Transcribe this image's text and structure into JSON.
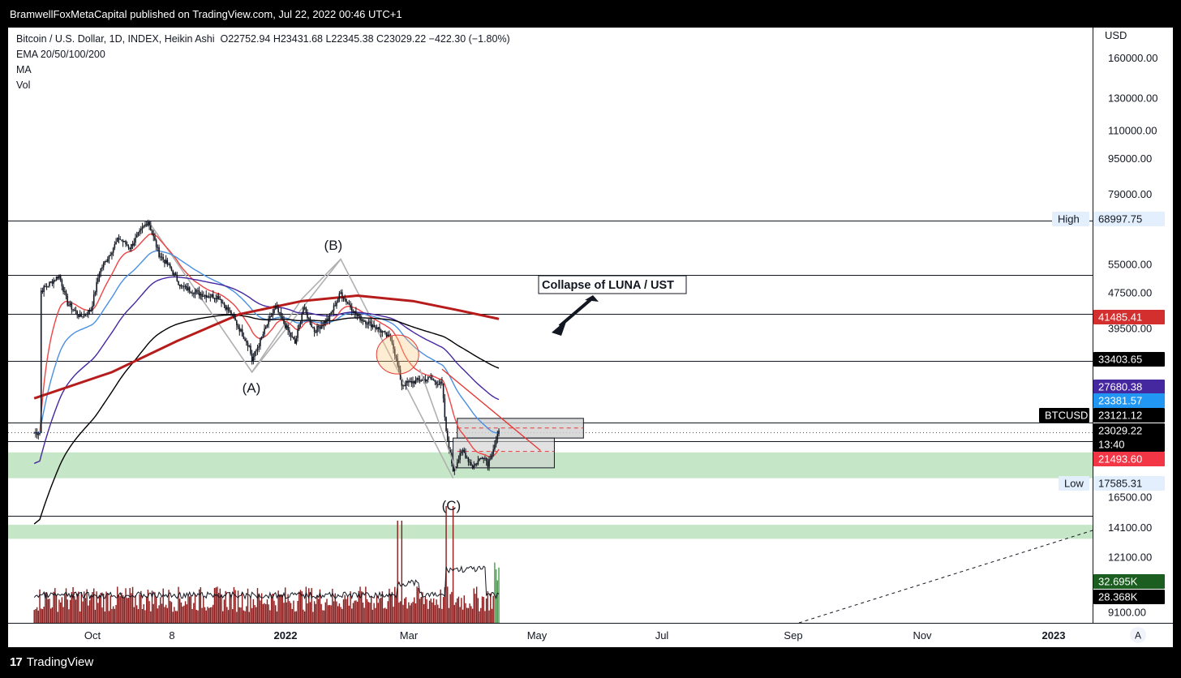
{
  "header": {
    "publisher": "BramwellFoxMetaCapital published on TradingView.com, Jul 22, 2022 00:46 UTC+1"
  },
  "footer": {
    "brand": "TradingView",
    "brand_mark": "17"
  },
  "legend": {
    "symbol": "Bitcoin / U.S. Dollar, 1D, INDEX, Heikin Ashi",
    "ohlc": "O22752.94  H23431.68  L22345.38  C23029.22  −422.30 (−1.80%)",
    "ema": "EMA 20/50/100/200",
    "ma": "MA",
    "vol": "Vol"
  },
  "currency": "USD",
  "auto_button": "A",
  "colors": {
    "ema20": "#ef4444",
    "ema50": "#4a90e2",
    "ema100": "#4527a0",
    "ema200": "#000000",
    "ma": "#b71c1c",
    "zone": "#81c784",
    "volume": "#8b1a1a"
  },
  "chart_data": {
    "type": "candlestick",
    "scale": "log",
    "x_ticks": [
      "Oct",
      "8",
      "2022",
      "Mar",
      "May",
      "Jul",
      "Sep",
      "Nov",
      "2023"
    ],
    "y_ticks": [
      160000,
      130000,
      110000,
      95000,
      79000,
      55000,
      47500,
      39500,
      16500,
      14100,
      12100,
      9100
    ],
    "y_tick_labels": [
      "160000.00",
      "130000.00",
      "110000.00",
      "95000.00",
      "79000.00",
      "55000.00",
      "47500.00",
      "39500.00",
      "16500.00",
      "14100.00",
      "12100.00",
      "9100.00"
    ],
    "price_labels": [
      {
        "label": "High",
        "value": "68997.75",
        "style": "plain"
      },
      {
        "label": "",
        "value": "41485.41",
        "style": "ma"
      },
      {
        "label": "",
        "value": "33403.65",
        "style": "black"
      },
      {
        "label": "",
        "value": "27680.38",
        "style": "ema100"
      },
      {
        "label": "",
        "value": "23381.57",
        "style": "ema50"
      },
      {
        "label": "BTCUSD",
        "value": "23121.12",
        "style": "black"
      },
      {
        "label": "",
        "value": "23029.22",
        "style": "black"
      },
      {
        "label": "",
        "value": "13:40",
        "style": "black"
      },
      {
        "label": "",
        "value": "21493.60",
        "style": "ema20"
      },
      {
        "label": "Low",
        "value": "17585.31",
        "style": "plain"
      },
      {
        "label": "",
        "value": "32.695K",
        "style": "volgreen"
      },
      {
        "label": "",
        "value": "28.368K",
        "style": "black"
      }
    ],
    "annotations": [
      "(A)",
      "(B)",
      "(C)",
      "Collapse of LUNA / UST"
    ],
    "horizontal_levels": [
      68997.75,
      52000,
      42500,
      33403.65,
      24300,
      22000,
      15000
    ],
    "demand_zones": [
      [
        18200,
        20800
      ],
      [
        13300,
        14300
      ]
    ],
    "key_points": [
      {
        "date": "2021-11-10",
        "price": 68997.75,
        "note": "High"
      },
      {
        "date": "2022-01-24",
        "price": 33000,
        "note": "(A)"
      },
      {
        "date": "2022-03-29",
        "price": 48000,
        "note": "(B)"
      },
      {
        "date": "2022-06-18",
        "price": 17585.31,
        "note": "(C)"
      },
      {
        "date": "2022-07-21",
        "price": 23029.22,
        "note": "Last"
      }
    ]
  }
}
